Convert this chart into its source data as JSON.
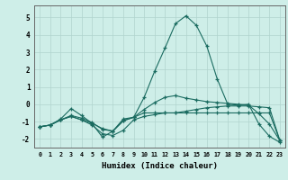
{
  "title": "",
  "xlabel": "Humidex (Indice chaleur)",
  "ylabel": "",
  "background_color": "#ceeee8",
  "grid_color": "#b0d4ce",
  "line_color": "#1a6b60",
  "xlim": [
    -0.5,
    23.5
  ],
  "ylim": [
    -2.5,
    5.7
  ],
  "yticks": [
    -2,
    -1,
    0,
    1,
    2,
    3,
    4,
    5
  ],
  "xticks": [
    0,
    1,
    2,
    3,
    4,
    5,
    6,
    7,
    8,
    9,
    10,
    11,
    12,
    13,
    14,
    15,
    16,
    17,
    18,
    19,
    20,
    21,
    22,
    23
  ],
  "x": [
    0,
    1,
    2,
    3,
    4,
    5,
    6,
    7,
    8,
    9,
    10,
    11,
    12,
    13,
    14,
    15,
    16,
    17,
    18,
    19,
    20,
    21,
    22,
    23
  ],
  "series": [
    [
      -1.3,
      -1.2,
      -0.85,
      -0.25,
      -0.65,
      -1.1,
      -1.9,
      -1.55,
      -0.85,
      -0.75,
      0.4,
      1.9,
      3.25,
      4.65,
      5.1,
      4.55,
      3.35,
      1.45,
      0.0,
      -0.05,
      0.0,
      -1.15,
      -1.85,
      -2.2
    ],
    [
      -1.3,
      -1.2,
      -0.9,
      -0.7,
      -0.9,
      -1.2,
      -1.7,
      -1.8,
      -1.5,
      -0.9,
      -0.7,
      -0.6,
      -0.5,
      -0.5,
      -0.4,
      -0.3,
      -0.2,
      -0.15,
      -0.1,
      -0.1,
      -0.1,
      -0.15,
      -0.2,
      -2.1
    ],
    [
      -1.3,
      -1.2,
      -0.9,
      -0.7,
      -0.9,
      -1.1,
      -1.4,
      -1.55,
      -0.95,
      -0.75,
      -0.5,
      -0.5,
      -0.5,
      -0.5,
      -0.5,
      -0.5,
      -0.5,
      -0.5,
      -0.5,
      -0.5,
      -0.5,
      -0.5,
      -0.5,
      -2.1
    ],
    [
      -1.3,
      -1.2,
      -0.9,
      -0.65,
      -0.8,
      -1.05,
      -1.45,
      -1.55,
      -0.95,
      -0.75,
      -0.3,
      0.1,
      0.4,
      0.5,
      0.35,
      0.25,
      0.15,
      0.1,
      0.05,
      0.0,
      -0.05,
      -0.55,
      -1.15,
      -2.1
    ]
  ]
}
